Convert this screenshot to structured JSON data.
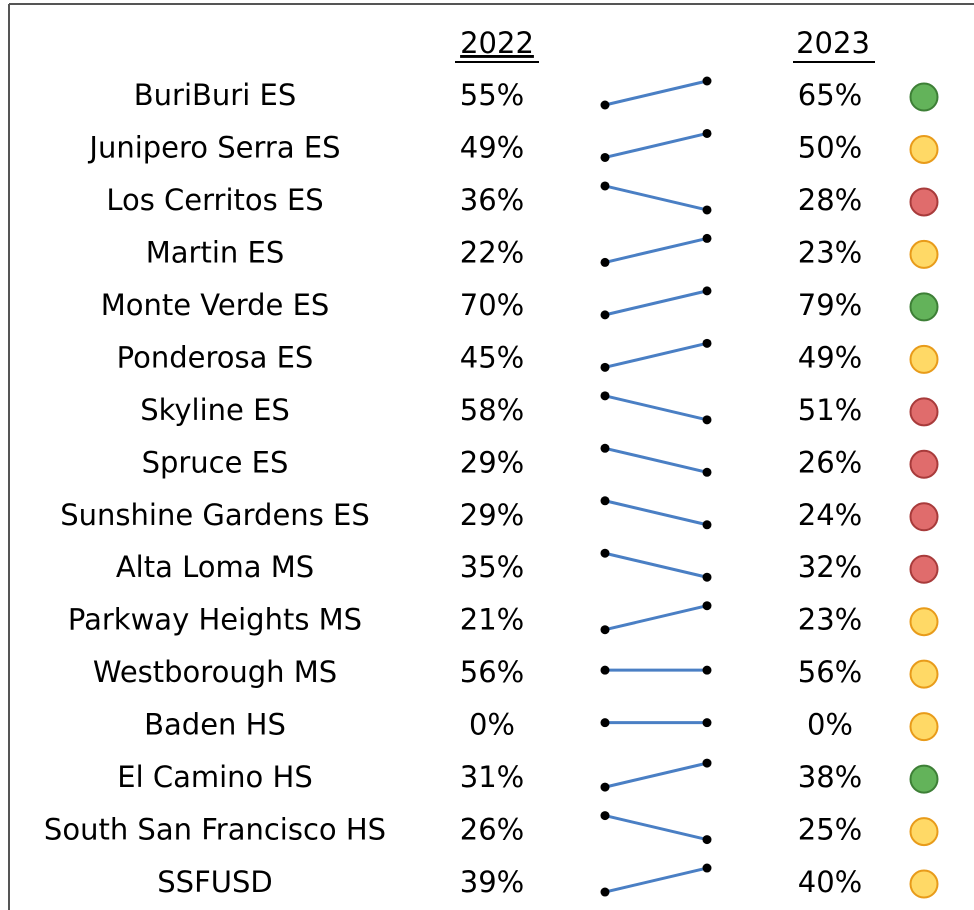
{
  "headers": [
    "2022",
    "2023"
  ],
  "rows": [
    {
      "name": "BuriBuri ES",
      "values": [
        55,
        65
      ],
      "value_labels": [
        "55%",
        "65%"
      ],
      "status_color": "#63b35a"
    },
    {
      "name": "Junipero Serra ES",
      "values": [
        49,
        50
      ],
      "value_labels": [
        "49%",
        "50%"
      ],
      "status_color": "#ffd966"
    },
    {
      "name": "Los Cerritos ES",
      "values": [
        36,
        28
      ],
      "value_labels": [
        "36%",
        "28%"
      ],
      "status_color": "#e06c6c"
    },
    {
      "name": "Martin ES",
      "values": [
        22,
        23
      ],
      "value_labels": [
        "22%",
        "23%"
      ],
      "status_color": "#ffd966"
    },
    {
      "name": "Monte Verde ES",
      "values": [
        70,
        79
      ],
      "value_labels": [
        "70%",
        "79%"
      ],
      "status_color": "#63b35a"
    },
    {
      "name": "Ponderosa ES",
      "values": [
        45,
        49
      ],
      "value_labels": [
        "45%",
        "49%"
      ],
      "status_color": "#ffd966"
    },
    {
      "name": "Skyline ES",
      "values": [
        58,
        51
      ],
      "value_labels": [
        "58%",
        "51%"
      ],
      "status_color": "#e06c6c"
    },
    {
      "name": "Spruce ES",
      "values": [
        29,
        26
      ],
      "value_labels": [
        "29%",
        "26%"
      ],
      "status_color": "#e06c6c"
    },
    {
      "name": "Sunshine Gardens ES",
      "values": [
        29,
        24
      ],
      "value_labels": [
        "29%",
        "24%"
      ],
      "status_color": "#e06c6c"
    },
    {
      "name": "Alta Loma MS",
      "values": [
        35,
        32
      ],
      "value_labels": [
        "35%",
        "32%"
      ],
      "status_color": "#e06c6c"
    },
    {
      "name": "Parkway Heights MS",
      "values": [
        21,
        23
      ],
      "value_labels": [
        "21%",
        "23%"
      ],
      "status_color": "#ffd966"
    },
    {
      "name": "Westborough MS",
      "values": [
        56,
        56
      ],
      "value_labels": [
        "56%",
        "56%"
      ],
      "status_color": "#ffd966"
    },
    {
      "name": "Baden HS",
      "values": [
        0,
        0
      ],
      "value_labels": [
        "0%",
        "0%"
      ],
      "status_color": "#ffd966"
    },
    {
      "name": "El Camino HS",
      "values": [
        31,
        38
      ],
      "value_labels": [
        "31%",
        "38%"
      ],
      "status_color": "#63b35a"
    },
    {
      "name": "South San Francisco HS",
      "values": [
        26,
        25
      ],
      "value_labels": [
        "26%",
        "25%"
      ],
      "status_color": "#ffd966"
    },
    {
      "name": "SSFUSD",
      "values": [
        39,
        40
      ],
      "value_labels": [
        "39%",
        "40%"
      ],
      "status_color": "#ffd966"
    }
  ]
}
